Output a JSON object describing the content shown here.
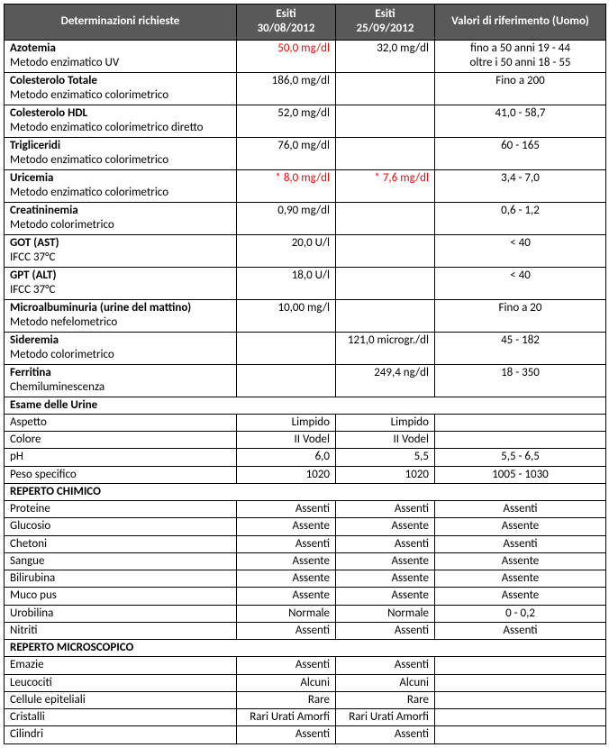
{
  "colors": {
    "header_bg": "#595959",
    "header_fg": "#ffffff",
    "border": "#000000",
    "text": "#000000",
    "abnormal": "#ff0000",
    "background": "#ffffff"
  },
  "columns": {
    "determinations": "Determinazioni richieste",
    "result1_line1": "Esiti",
    "result1_line2": "30/08/2012",
    "result2_line1": "Esiti",
    "result2_line2": "25/09/2012",
    "reference": "Valori di riferimento (Uomo)"
  },
  "main_rows": [
    {
      "name": "Azotemia",
      "method": "Metodo enzimatico UV",
      "r1": "50,0 mg/dl",
      "r1_abn": true,
      "r2": "32,0 mg/dl",
      "r2_abn": false,
      "ref_line1": "fino a 50 anni 19 - 44",
      "ref_line2": "oltre i 50 anni 18 - 55"
    },
    {
      "name": "Colesterolo Totale",
      "method": "Metodo enzimatico colorimetrico",
      "r1": "186,0 mg/dl",
      "r1_abn": false,
      "r2": "",
      "r2_abn": false,
      "ref_line1": "Fino a 200",
      "ref_line2": ""
    },
    {
      "name": "Colesterolo HDL",
      "method": "Metodo enzimatico colorimetrico diretto",
      "r1": "52,0 mg/dl",
      "r1_abn": false,
      "r2": "",
      "r2_abn": false,
      "ref_line1": "41,0 - 58,7",
      "ref_line2": ""
    },
    {
      "name": "Trigliceridi",
      "method": "Metodo enzimatico colorimetrico",
      "r1": "76,0 mg/dl",
      "r1_abn": false,
      "r2": "",
      "r2_abn": false,
      "ref_line1": "60 - 165",
      "ref_line2": ""
    },
    {
      "name": "Uricemia",
      "method": "Metodo enzimatico colorimetrico",
      "r1": "* 8,0 mg/dl",
      "r1_abn": true,
      "r2": "* 7,6 mg/dl",
      "r2_abn": true,
      "ref_line1": "3,4 - 7,0",
      "ref_line2": ""
    },
    {
      "name": "Creatininemia",
      "method": "Metodo colorimetrico",
      "r1": "0,90 mg/dl",
      "r1_abn": false,
      "r2": "",
      "r2_abn": false,
      "ref_line1": "0,6 - 1,2",
      "ref_line2": ""
    },
    {
      "name": "GOT (AST)",
      "method": "IFCC 37°C",
      "r1": "20,0 U/l",
      "r1_abn": false,
      "r2": "",
      "r2_abn": false,
      "ref_line1": "< 40",
      "ref_line2": ""
    },
    {
      "name": "GPT (ALT)",
      "method": "IFCC 37°C",
      "r1": "18,0 U/l",
      "r1_abn": false,
      "r2": "",
      "r2_abn": false,
      "ref_line1": "< 40",
      "ref_line2": ""
    },
    {
      "name": "Microalbuminuria (urine del mattino)",
      "method": "Metodo nefelometrico",
      "r1": "10,00 mg/l",
      "r1_abn": false,
      "r2": "",
      "r2_abn": false,
      "ref_line1": "Fino a 20",
      "ref_line2": ""
    },
    {
      "name": "Sideremia",
      "method": "Metodo colorimetrico",
      "r1": "",
      "r1_abn": false,
      "r2": "121,0 microgr./dl",
      "r2_abn": false,
      "ref_line1": "45 - 182",
      "ref_line2": ""
    },
    {
      "name": "Ferritina",
      "method": "Chemiluminescenza",
      "r1": "",
      "r1_abn": false,
      "r2": "249,4 ng/dl",
      "r2_abn": false,
      "ref_line1": "18 - 350",
      "ref_line2": ""
    }
  ],
  "sections": [
    {
      "title": "Esame delle Urine",
      "rows": [
        {
          "label": "Aspetto",
          "r1": "Limpido",
          "r2": "Limpido",
          "ref": ""
        },
        {
          "label": "Colore",
          "r1": "II Vodel",
          "r2": "II Vodel",
          "ref": ""
        },
        {
          "label": "pH",
          "r1": "6,0",
          "r2": "5,5",
          "ref": "5,5 - 6,5"
        },
        {
          "label": "Peso specifico",
          "r1": "1020",
          "r2": "1020",
          "ref": "1005 - 1030"
        }
      ]
    },
    {
      "title": "REPERTO CHIMICO",
      "rows": [
        {
          "label": "Proteine",
          "r1": "Assenti",
          "r2": "Assenti",
          "ref": "Assenti"
        },
        {
          "label": "Glucosio",
          "r1": "Assente",
          "r2": "Assente",
          "ref": "Assente"
        },
        {
          "label": "Chetoni",
          "r1": "Assenti",
          "r2": "Assenti",
          "ref": "Assenti"
        },
        {
          "label": "Sangue",
          "r1": "Assente",
          "r2": "Assente",
          "ref": "Assente"
        },
        {
          "label": "Bilirubina",
          "r1": "Assente",
          "r2": "Assente",
          "ref": "Assente"
        },
        {
          "label": "Muco pus",
          "r1": "Assente",
          "r2": "Assente",
          "ref": "Assente"
        },
        {
          "label": "Urobilina",
          "r1": "Normale",
          "r2": "Normale",
          "ref": "0 - 0,2"
        },
        {
          "label": "Nitriti",
          "r1": "Assenti",
          "r2": "Assenti",
          "ref": "Assenti"
        }
      ]
    },
    {
      "title": "REPERTO MICROSCOPICO",
      "rows": [
        {
          "label": "Emazie",
          "r1": "Assenti",
          "r2": "Assenti",
          "ref": ""
        },
        {
          "label": "Leucociti",
          "r1": "Alcuni",
          "r2": "Alcuni",
          "ref": ""
        },
        {
          "label": "Cellule epiteliali",
          "r1": "Rare",
          "r2": "Rare",
          "ref": ""
        },
        {
          "label": "Cristalli",
          "r1": "Rari Urati Amorfi",
          "r2": "Rari Urati Amorfi",
          "ref": ""
        },
        {
          "label": "Cilindri",
          "r1": "Assenti",
          "r2": "Assenti",
          "ref": ""
        }
      ]
    }
  ]
}
